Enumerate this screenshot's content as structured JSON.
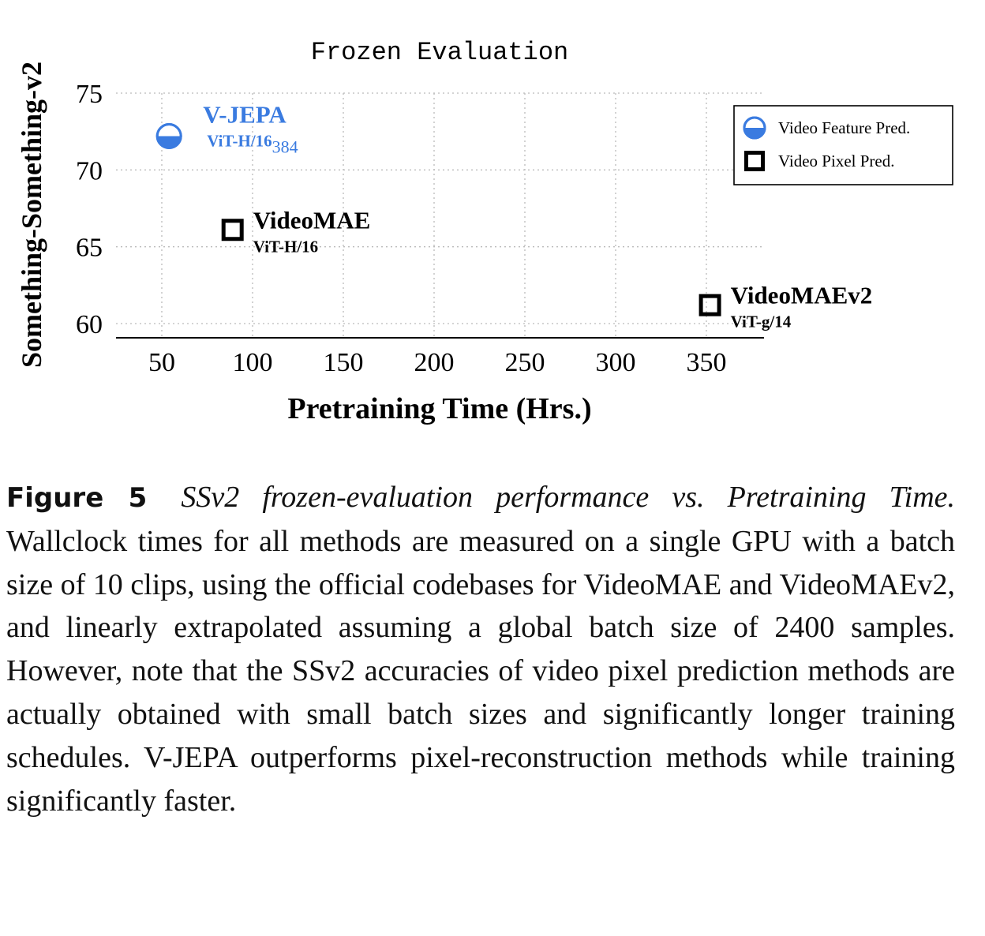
{
  "chart_data": {
    "type": "scatter",
    "title": "Frozen Evaluation",
    "xlabel": "Pretraining Time (Hrs.)",
    "ylabel": "Something-Something-v2",
    "xlim": [
      0,
      380
    ],
    "ylim": [
      59,
      76
    ],
    "xticks": [
      50,
      100,
      150,
      200,
      250,
      300,
      350
    ],
    "yticks": [
      60,
      65,
      70,
      75
    ],
    "grid": true,
    "legend_position": "top-right",
    "legend": [
      {
        "label": "Video Feature Pred.",
        "marker": "half-filled-circle",
        "color": "#3a7be0"
      },
      {
        "label": "Video Pixel Pred.",
        "marker": "open-square",
        "color": "#000000"
      }
    ],
    "points": [
      {
        "name": "V-JEPA",
        "model": "ViT-H/16",
        "model_sub": "384",
        "x": 54,
        "y": 72.2,
        "marker": "half-filled-circle",
        "color": "#3a7be0"
      },
      {
        "name": "VideoMAE",
        "model": "ViT-H/16",
        "model_sub": "",
        "x": 89,
        "y": 66.1,
        "marker": "open-square",
        "color": "#000000"
      },
      {
        "name": "VideoMAEv2",
        "model": "ViT-g/14",
        "model_sub": "",
        "x": 352,
        "y": 61.2,
        "marker": "open-square",
        "color": "#000000"
      }
    ]
  },
  "caption": {
    "label": "Figure 5",
    "title": "SSv2 frozen-evaluation performance vs. Pretraining Time.",
    "body": "Wallclock times for all methods are measured on a single GPU with a batch size of 10 clips, using the official codebases for VideoMAE and VideoMAEv2, and linearly extrapolated assuming a global batch size of 2400 samples. However, note that the SSv2 accuracies of video pixel prediction methods are actually obtained with small batch sizes and significantly longer training schedules. V-JEPA outperforms pixel-reconstruction methods while training significantly faster."
  }
}
